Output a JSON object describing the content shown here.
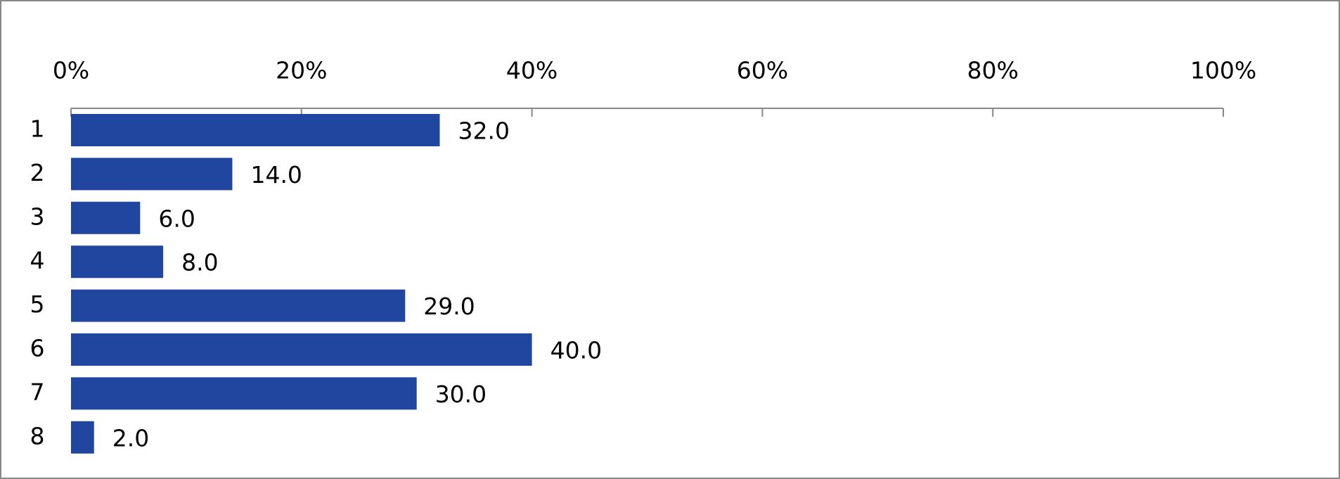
{
  "chart_data": {
    "type": "hbar",
    "categories": [
      "1",
      "2",
      "3",
      "4",
      "5",
      "6",
      "7",
      "8"
    ],
    "values": [
      32,
      14,
      6,
      8,
      29,
      40,
      30,
      2
    ],
    "value_labels": [
      "32.0",
      "14.0",
      "6.0",
      "8.0",
      "29.0",
      "40.0",
      "30.0",
      "2.0"
    ],
    "color": "#2146a0",
    "xlim": [
      0,
      100
    ],
    "xticks": [
      {
        "value": 0,
        "label": "0%"
      },
      {
        "value": 20,
        "label": "20%"
      },
      {
        "value": 40,
        "label": "40%"
      },
      {
        "value": 60,
        "label": "60%"
      },
      {
        "value": 80,
        "label": "80%"
      },
      {
        "value": 100,
        "label": "100%"
      }
    ],
    "grid": false
  }
}
